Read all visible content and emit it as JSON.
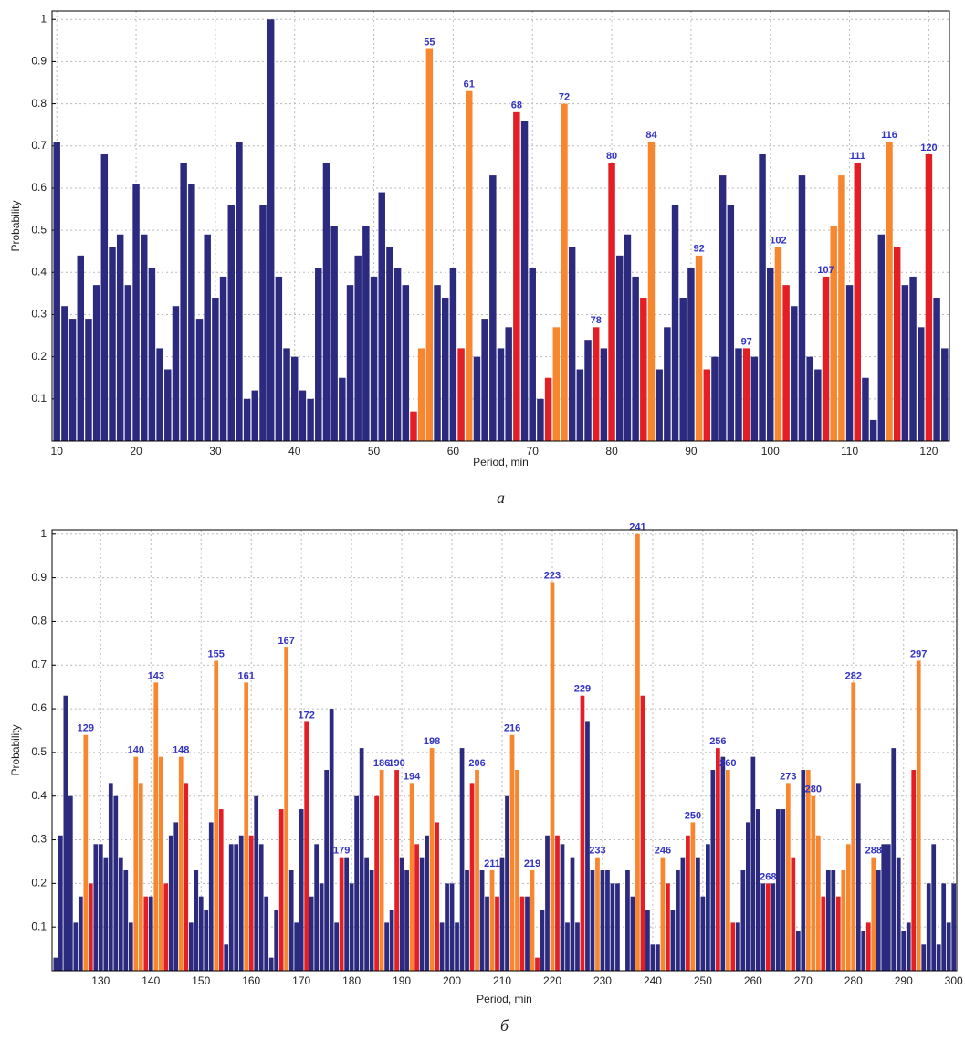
{
  "chart_data": [
    {
      "type": "bar",
      "xlabel": "Period, min",
      "ylabel": "Probability",
      "caption": "а",
      "xlim": [
        9.4,
        122.6
      ],
      "ylim": [
        0,
        1.02
      ],
      "xticks": [
        10,
        20,
        30,
        40,
        50,
        60,
        70,
        80,
        90,
        100,
        110,
        120
      ],
      "yticks": [
        0.1,
        0.2,
        0.3,
        0.4,
        0.5,
        0.6,
        0.7,
        0.8,
        0.9,
        1
      ],
      "grid": true,
      "x": [
        10,
        11,
        12,
        13,
        14,
        15,
        16,
        17,
        18,
        19,
        20,
        21,
        22,
        23,
        24,
        25,
        26,
        27,
        28,
        29,
        30,
        31,
        32,
        33,
        34,
        35,
        36,
        37,
        38,
        39,
        40,
        41,
        42,
        43,
        44,
        45,
        46,
        47,
        48,
        49,
        50,
        51,
        52,
        53,
        54,
        55,
        56,
        57,
        58,
        59,
        60,
        61,
        62,
        63,
        64,
        65,
        66,
        67,
        68,
        69,
        70,
        71,
        72,
        73,
        74,
        75,
        76,
        77,
        78,
        79,
        80,
        81,
        82,
        83,
        84,
        85,
        86,
        87,
        88,
        89,
        90,
        91,
        92,
        93,
        94,
        95,
        96,
        97,
        98,
        99,
        100,
        101,
        102,
        103,
        104,
        105,
        106,
        107,
        108,
        109,
        110,
        111,
        112,
        113,
        114,
        115,
        116,
        117,
        118,
        119,
        120,
        121,
        122
      ],
      "values": [
        0.71,
        0.32,
        0.29,
        0.44,
        0.29,
        0.37,
        0.68,
        0.46,
        0.49,
        0.37,
        0.61,
        0.49,
        0.41,
        0.22,
        0.17,
        0.32,
        0.66,
        0.61,
        0.29,
        0.49,
        0.34,
        0.39,
        0.56,
        0.71,
        0.1,
        0.12,
        0.56,
        1.0,
        0.39,
        0.22,
        0.2,
        0.12,
        0.1,
        0.41,
        0.66,
        0.51,
        0.15,
        0.37,
        0.44,
        0.51,
        0.39,
        0.59,
        0.46,
        0.41,
        0.37,
        0.07,
        0.22,
        0.93,
        0.37,
        0.34,
        0.41,
        0.22,
        0.83,
        0.2,
        0.29,
        0.63,
        0.22,
        0.27,
        0.78,
        0.76,
        0.41,
        0.1,
        0.15,
        0.27,
        0.8,
        0.46,
        0.17,
        0.24,
        0.27,
        0.22,
        0.66,
        0.44,
        0.49,
        0.39,
        0.34,
        0.71,
        0.17,
        0.27,
        0.56,
        0.34,
        0.41,
        0.44,
        0.17,
        0.2,
        0.63,
        0.56,
        0.22,
        0.22,
        0.2,
        0.68,
        0.41,
        0.46,
        0.37,
        0.32,
        0.63,
        0.2,
        0.17,
        0.39,
        0.51,
        0.63,
        0.37,
        0.66,
        0.15,
        0.05,
        0.49,
        0.71,
        0.46,
        0.37,
        0.39,
        0.27,
        0.68,
        0.34,
        0.22
      ],
      "colors": [
        "#2b2a7e",
        "#2b2a7e",
        "#2b2a7e",
        "#2b2a7e",
        "#2b2a7e",
        "#2b2a7e",
        "#2b2a7e",
        "#2b2a7e",
        "#2b2a7e",
        "#2b2a7e",
        "#2b2a7e",
        "#2b2a7e",
        "#2b2a7e",
        "#2b2a7e",
        "#2b2a7e",
        "#2b2a7e",
        "#2b2a7e",
        "#2b2a7e",
        "#2b2a7e",
        "#2b2a7e",
        "#2b2a7e",
        "#2b2a7e",
        "#2b2a7e",
        "#2b2a7e",
        "#2b2a7e",
        "#2b2a7e",
        "#2b2a7e",
        "#2b2a7e",
        "#2b2a7e",
        "#2b2a7e",
        "#2b2a7e",
        "#2b2a7e",
        "#2b2a7e",
        "#2b2a7e",
        "#2b2a7e",
        "#2b2a7e",
        "#2b2a7e",
        "#2b2a7e",
        "#2b2a7e",
        "#2b2a7e",
        "#2b2a7e",
        "#2b2a7e",
        "#2b2a7e",
        "#2b2a7e",
        "#2b2a7e",
        "#e31e24",
        "#f7862e",
        "#f7862e",
        "#2b2a7e",
        "#2b2a7e",
        "#2b2a7e",
        "#e31e24",
        "#f7862e",
        "#2b2a7e",
        "#2b2a7e",
        "#2b2a7e",
        "#2b2a7e",
        "#2b2a7e",
        "#e31e24",
        "#2b2a7e",
        "#2b2a7e",
        "#2b2a7e",
        "#e31e24",
        "#f7862e",
        "#f7862e",
        "#2b2a7e",
        "#2b2a7e",
        "#2b2a7e",
        "#e31e24",
        "#2b2a7e",
        "#e31e24",
        "#2b2a7e",
        "#2b2a7e",
        "#2b2a7e",
        "#e31e24",
        "#f7862e",
        "#2b2a7e",
        "#2b2a7e",
        "#2b2a7e",
        "#2b2a7e",
        "#2b2a7e",
        "#f7862e",
        "#e31e24",
        "#2b2a7e",
        "#2b2a7e",
        "#2b2a7e",
        "#2b2a7e",
        "#e31e24",
        "#2b2a7e",
        "#2b2a7e",
        "#2b2a7e",
        "#f7862e",
        "#e31e24",
        "#2b2a7e",
        "#2b2a7e",
        "#2b2a7e",
        "#2b2a7e",
        "#e31e24",
        "#f7862e",
        "#f7862e",
        "#2b2a7e",
        "#e31e24",
        "#2b2a7e",
        "#2b2a7e",
        "#2b2a7e",
        "#f7862e",
        "#e31e24",
        "#2b2a7e",
        "#2b2a7e",
        "#2b2a7e",
        "#e31e24",
        "#2b2a7e",
        "#2b2a7e"
      ],
      "annotations": [
        {
          "x": 57,
          "text": "55"
        },
        {
          "x": 62,
          "text": "61"
        },
        {
          "x": 68,
          "text": "68"
        },
        {
          "x": 74,
          "text": "72"
        },
        {
          "x": 78,
          "text": "78"
        },
        {
          "x": 80,
          "text": "80"
        },
        {
          "x": 85,
          "text": "84"
        },
        {
          "x": 91,
          "text": "92"
        },
        {
          "x": 97,
          "text": "97"
        },
        {
          "x": 101,
          "text": "102"
        },
        {
          "x": 107,
          "text": "107"
        },
        {
          "x": 111,
          "text": "111"
        },
        {
          "x": 115,
          "text": "116"
        },
        {
          "x": 120,
          "text": "120"
        }
      ]
    },
    {
      "type": "bar",
      "xlabel": "Period, min",
      "ylabel": "Probability",
      "caption": "б",
      "xlim": [
        120.3,
        300.6
      ],
      "ylim": [
        0,
        1.01
      ],
      "xticks": [
        130,
        140,
        150,
        160,
        170,
        180,
        190,
        200,
        210,
        220,
        230,
        240,
        250,
        260,
        270,
        280,
        290,
        300
      ],
      "yticks": [
        0.1,
        0.2,
        0.3,
        0.4,
        0.5,
        0.6,
        0.7,
        0.8,
        0.9,
        1
      ],
      "grid": true,
      "x": [
        121,
        122,
        123,
        124,
        125,
        126,
        127,
        128,
        129,
        130,
        131,
        132,
        133,
        134,
        135,
        136,
        137,
        138,
        139,
        140,
        141,
        142,
        143,
        144,
        145,
        146,
        147,
        148,
        149,
        150,
        151,
        152,
        153,
        154,
        155,
        156,
        157,
        158,
        159,
        160,
        161,
        162,
        163,
        164,
        165,
        166,
        167,
        168,
        169,
        170,
        171,
        172,
        173,
        174,
        175,
        176,
        177,
        178,
        179,
        180,
        181,
        182,
        183,
        184,
        185,
        186,
        187,
        188,
        189,
        190,
        191,
        192,
        193,
        194,
        195,
        196,
        197,
        198,
        199,
        200,
        201,
        202,
        203,
        204,
        205,
        206,
        207,
        208,
        209,
        210,
        211,
        212,
        213,
        214,
        215,
        216,
        217,
        218,
        219,
        220,
        221,
        222,
        223,
        224,
        225,
        226,
        227,
        228,
        229,
        230,
        231,
        232,
        233,
        234,
        235,
        236,
        237,
        238,
        239,
        240,
        241,
        242,
        243,
        244,
        245,
        246,
        247,
        248,
        249,
        250,
        251,
        252,
        253,
        254,
        255,
        256,
        257,
        258,
        259,
        260,
        261,
        262,
        263,
        264,
        265,
        266,
        267,
        268,
        269,
        270,
        271,
        272,
        273,
        274,
        275,
        276,
        277,
        278,
        279,
        280,
        281,
        282,
        283,
        284,
        285,
        286,
        287,
        288,
        289,
        290,
        291,
        292,
        293,
        294,
        295,
        296,
        297,
        298,
        299,
        300
      ],
      "values": [
        0.03,
        0.31,
        0.63,
        0.4,
        0.11,
        0.17,
        0.54,
        0.2,
        0.29,
        0.29,
        0.26,
        0.43,
        0.4,
        0.26,
        0.23,
        0.11,
        0.49,
        0.43,
        0.17,
        0.17,
        0.66,
        0.49,
        0.2,
        0.31,
        0.34,
        0.49,
        0.43,
        0.11,
        0.23,
        0.17,
        0.14,
        0.34,
        0.71,
        0.37,
        0.06,
        0.29,
        0.29,
        0.31,
        0.66,
        0.31,
        0.4,
        0.29,
        0.17,
        0.03,
        0.14,
        0.37,
        0.74,
        0.23,
        0.11,
        0.37,
        0.57,
        0.17,
        0.29,
        0.2,
        0.46,
        0.6,
        0.11,
        0.26,
        0.26,
        0.2,
        0.4,
        0.51,
        0.26,
        0.23,
        0.4,
        0.46,
        0.11,
        0.14,
        0.46,
        0.26,
        0.23,
        0.43,
        0.29,
        0.26,
        0.31,
        0.51,
        0.34,
        0.11,
        0.2,
        0.2,
        0.11,
        0.51,
        0.23,
        0.43,
        0.46,
        0.23,
        0.17,
        0.23,
        0.17,
        0.26,
        0.4,
        0.54,
        0.46,
        0.17,
        0.17,
        0.23,
        0.03,
        0.14,
        0.31,
        0.89,
        0.31,
        0.29,
        0.11,
        0.26,
        0.11,
        0.63,
        0.57,
        0.23,
        0.26,
        0.23,
        0.23,
        0.2,
        0.2,
        0,
        0.23,
        0.17,
        1.0,
        0.63,
        0.14,
        0.06,
        0.06,
        0.26,
        0.2,
        0.14,
        0.23,
        0.26,
        0.31,
        0.34,
        0.26,
        0.17,
        0.29,
        0.46,
        0.51,
        0.49,
        0.46,
        0.11,
        0.11,
        0.23,
        0.34,
        0.49,
        0.37,
        0.2,
        0.2,
        0.2,
        0.37,
        0.37,
        0.43,
        0.26,
        0.09,
        0.46,
        0.46,
        0.4,
        0.31,
        0.17,
        0.23,
        0.23,
        0.17,
        0.23,
        0.29,
        0.66,
        0.43,
        0.09,
        0.11,
        0.26,
        0.23,
        0.29,
        0.29,
        0.51,
        0.26,
        0.09,
        0.11,
        0.46,
        0.71,
        0.06,
        0.2,
        0.29,
        0.06,
        0.2,
        0.11,
        0.2
      ],
      "colors": [
        "#2b2a7e",
        "#2b2a7e",
        "#2b2a7e",
        "#2b2a7e",
        "#2b2a7e",
        "#2b2a7e",
        "#f7862e",
        "#e31e24",
        "#2b2a7e",
        "#2b2a7e",
        "#2b2a7e",
        "#2b2a7e",
        "#2b2a7e",
        "#2b2a7e",
        "#2b2a7e",
        "#2b2a7e",
        "#f7862e",
        "#f7862e",
        "#e31e24",
        "#2b2a7e",
        "#f7862e",
        "#f7862e",
        "#e31e24",
        "#2b2a7e",
        "#2b2a7e",
        "#f7862e",
        "#e31e24",
        "#2b2a7e",
        "#2b2a7e",
        "#2b2a7e",
        "#2b2a7e",
        "#2b2a7e",
        "#f7862e",
        "#e31e24",
        "#2b2a7e",
        "#2b2a7e",
        "#2b2a7e",
        "#2b2a7e",
        "#f7862e",
        "#e31e24",
        "#2b2a7e",
        "#2b2a7e",
        "#2b2a7e",
        "#2b2a7e",
        "#2b2a7e",
        "#e31e24",
        "#f7862e",
        "#2b2a7e",
        "#2b2a7e",
        "#2b2a7e",
        "#e31e24",
        "#2b2a7e",
        "#2b2a7e",
        "#2b2a7e",
        "#2b2a7e",
        "#2b2a7e",
        "#2b2a7e",
        "#e31e24",
        "#2b2a7e",
        "#2b2a7e",
        "#2b2a7e",
        "#2b2a7e",
        "#2b2a7e",
        "#2b2a7e",
        "#e31e24",
        "#f7862e",
        "#2b2a7e",
        "#2b2a7e",
        "#e31e24",
        "#2b2a7e",
        "#2b2a7e",
        "#f7862e",
        "#e31e24",
        "#2b2a7e",
        "#2b2a7e",
        "#f7862e",
        "#e31e24",
        "#2b2a7e",
        "#2b2a7e",
        "#2b2a7e",
        "#2b2a7e",
        "#2b2a7e",
        "#2b2a7e",
        "#e31e24",
        "#f7862e",
        "#2b2a7e",
        "#2b2a7e",
        "#f7862e",
        "#e31e24",
        "#2b2a7e",
        "#2b2a7e",
        "#f7862e",
        "#f7862e",
        "#e31e24",
        "#2b2a7e",
        "#f7862e",
        "#e31e24",
        "#2b2a7e",
        "#2b2a7e",
        "#f7862e",
        "#e31e24",
        "#2b2a7e",
        "#2b2a7e",
        "#2b2a7e",
        "#2b2a7e",
        "#e31e24",
        "#2b2a7e",
        "#2b2a7e",
        "#f7862e",
        "#2b2a7e",
        "#2b2a7e",
        "#2b2a7e",
        "#2b2a7e",
        "#2b2a7e",
        "#2b2a7e",
        "#2b2a7e",
        "#f7862e",
        "#e31e24",
        "#2b2a7e",
        "#2b2a7e",
        "#2b2a7e",
        "#f7862e",
        "#e31e24",
        "#2b2a7e",
        "#2b2a7e",
        "#2b2a7e",
        "#e31e24",
        "#f7862e",
        "#2b2a7e",
        "#2b2a7e",
        "#2b2a7e",
        "#2b2a7e",
        "#e31e24",
        "#2b2a7e",
        "#f7862e",
        "#e31e24",
        "#2b2a7e",
        "#2b2a7e",
        "#2b2a7e",
        "#2b2a7e",
        "#2b2a7e",
        "#2b2a7e",
        "#e31e24",
        "#2b2a7e",
        "#2b2a7e",
        "#2b2a7e",
        "#f7862e",
        "#e31e24",
        "#2b2a7e",
        "#2b2a7e",
        "#f7862e",
        "#f7862e",
        "#f7862e",
        "#e31e24",
        "#2b2a7e",
        "#2b2a7e",
        "#e31e24",
        "#f7862e",
        "#f7862e",
        "#f7862e",
        "#2b2a7e",
        "#2b2a7e",
        "#e31e24",
        "#f7862e",
        "#2b2a7e",
        "#2b2a7e",
        "#2b2a7e",
        "#2b2a7e",
        "#2b2a7e",
        "#2b2a7e",
        "#2b2a7e",
        "#e31e24",
        "#f7862e",
        "#2b2a7e",
        "#2b2a7e",
        "#2b2a7e",
        "#2b2a7e",
        "#2b2a7e",
        "#2b2a7e",
        "#2b2a7e"
      ],
      "annotations": [
        {
          "x": 127,
          "text": "129"
        },
        {
          "x": 137,
          "text": "140"
        },
        {
          "x": 141,
          "text": "143"
        },
        {
          "x": 146,
          "text": "148"
        },
        {
          "x": 153,
          "text": "155"
        },
        {
          "x": 159,
          "text": "161"
        },
        {
          "x": 167,
          "text": "167"
        },
        {
          "x": 171,
          "text": "172"
        },
        {
          "x": 178,
          "text": "179"
        },
        {
          "x": 186,
          "text": "186"
        },
        {
          "x": 189,
          "text": "190"
        },
        {
          "x": 192,
          "text": "194"
        },
        {
          "x": 196,
          "text": "198"
        },
        {
          "x": 205,
          "text": "206"
        },
        {
          "x": 208,
          "text": "211"
        },
        {
          "x": 212,
          "text": "216"
        },
        {
          "x": 216,
          "text": "219"
        },
        {
          "x": 220,
          "text": "223"
        },
        {
          "x": 226,
          "text": "229"
        },
        {
          "x": 229,
          "text": "233"
        },
        {
          "x": 237,
          "text": "241"
        },
        {
          "x": 242,
          "text": "246"
        },
        {
          "x": 248,
          "text": "250"
        },
        {
          "x": 253,
          "text": "256"
        },
        {
          "x": 255,
          "text": "260"
        },
        {
          "x": 263,
          "text": "268"
        },
        {
          "x": 267,
          "text": "273"
        },
        {
          "x": 272,
          "text": "280"
        },
        {
          "x": 280,
          "text": "282"
        },
        {
          "x": 284,
          "text": "288"
        },
        {
          "x": 293,
          "text": "297"
        }
      ]
    }
  ]
}
